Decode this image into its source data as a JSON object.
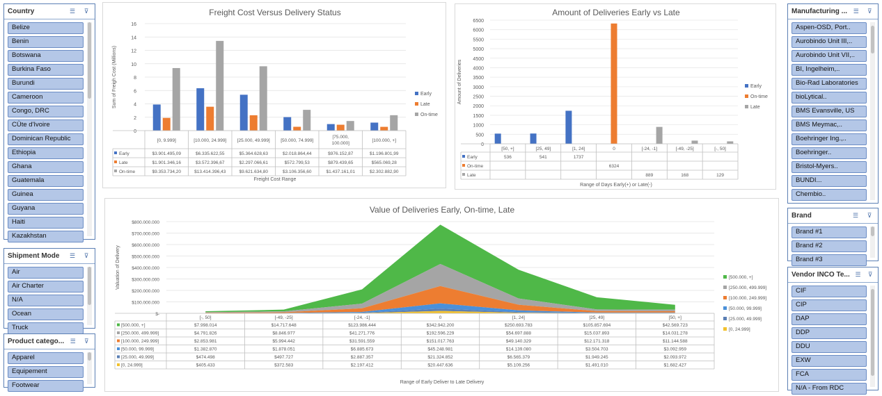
{
  "slicers": {
    "country": {
      "title": "Country",
      "items": [
        "Belize",
        "Benin",
        "Botswana",
        "Burkina Faso",
        "Burundi",
        "Cameroon",
        "Congo, DRC",
        "CÙte d'Ivoire",
        "Dominican Republic",
        "Ethiopia",
        "Ghana",
        "Guatemala",
        "Guinea",
        "Guyana",
        "Haiti",
        "Kazakhstan"
      ]
    },
    "shipment": {
      "title": "Shipment Mode",
      "items": [
        "Air",
        "Air Charter",
        "N/A",
        "Ocean",
        "Truck"
      ]
    },
    "product": {
      "title": "Product catego...",
      "items": [
        "Apparel",
        "Equipement",
        "Footwear"
      ]
    },
    "manufacturing": {
      "title": "Manufacturing ...",
      "items": [
        "Aspen-OSD, Port..",
        "Aurobindo Unit III,..",
        "Aurobindo Unit VII,..",
        "BI, Ingelheim,..",
        "Bio-Rad Laboratories",
        "bioLytical..",
        "BMS Evansville, US",
        "BMS Meymac,..",
        "Boehringer Ing.,..",
        "Boehringer..",
        "Bristol-Myers..",
        "BUNDI...",
        "Chembio.."
      ]
    },
    "brand": {
      "title": "Brand",
      "items": [
        "Brand #1",
        "Brand #2",
        "Brand #3"
      ]
    },
    "vendor": {
      "title": "Vendor INCO Te...",
      "items": [
        "CIF",
        "CIP",
        "DAP",
        "DDP",
        "DDU",
        "EXW",
        "FCA",
        "N/A - From RDC"
      ]
    }
  },
  "chart_data": [
    {
      "type": "bar",
      "title": "Freight Cost Versus Delivery Status",
      "xlabel": "Freight Cost Range",
      "ylabel": "Sum of Freigh Cost (Millions)",
      "ylim": [
        0,
        16
      ],
      "yticks": [
        0,
        2,
        4,
        6,
        8,
        10,
        12,
        14,
        16
      ],
      "legend_position": "right",
      "categories": [
        "[0, 9.999]",
        "[10.000, 24.999]",
        "[25.000, 49.999]",
        "[50.000, 74.999]",
        "[75.000, 100.000]",
        "[100.000, +]"
      ],
      "series": [
        {
          "name": "Early",
          "color": "#4472c4",
          "values": [
            3.901,
            6.336,
            5.365,
            2.019,
            0.976,
            1.197
          ],
          "labels": [
            "$3.901.495,09",
            "$6.335.622,55",
            "$5.364.628,63",
            "$2.018.864,44",
            "$976.152,87",
            "$1.196.801,99"
          ]
        },
        {
          "name": "Late",
          "color": "#ed7d31",
          "values": [
            1.901,
            3.572,
            2.297,
            0.573,
            0.879,
            0.565
          ],
          "labels": [
            "$1.901.346,16",
            "$3.572.396,67",
            "$2.297.066,61",
            "$572.799,53",
            "$879.439,65",
            "$565.069,28"
          ]
        },
        {
          "name": "On-time",
          "color": "#a5a5a5",
          "values": [
            9.354,
            13.414,
            9.622,
            3.106,
            1.437,
            2.303
          ],
          "labels": [
            "$9.353.734,20",
            "$13.414.396,43",
            "$9.621.634,80",
            "$3.106.356,60",
            "$1.437.161,01",
            "$2.302.882,90"
          ]
        }
      ]
    },
    {
      "type": "bar",
      "title": "Amount of Deliveries Early vs Late",
      "xlabel": "Range of Days Early(+) or Late(-)",
      "ylabel": "Amount of Deliveries",
      "ylim": [
        0,
        6500
      ],
      "yticks": [
        0,
        500,
        1000,
        1500,
        2000,
        2500,
        3000,
        3500,
        4000,
        4500,
        5000,
        5500,
        6000,
        6500
      ],
      "legend_position": "right",
      "categories": [
        "[50, +]",
        "[25, 49]",
        "[1, 24]",
        "0",
        "[-24, -1]",
        "[-49, -25]",
        "[-, 50]"
      ],
      "series": [
        {
          "name": "Early",
          "color": "#4472c4",
          "values": [
            536,
            541,
            1737,
            null,
            null,
            null,
            null
          ]
        },
        {
          "name": "On-time",
          "color": "#ed7d31",
          "values": [
            null,
            null,
            null,
            6324,
            null,
            null,
            null
          ]
        },
        {
          "name": "Late",
          "color": "#a5a5a5",
          "values": [
            null,
            null,
            null,
            null,
            889,
            168,
            129
          ]
        }
      ]
    },
    {
      "type": "area",
      "title": "Value of Deliveries Early, On-time, Late",
      "xlabel": "Range of Early Deliver to Late Delivery",
      "ylabel": "Valuation of Delivery",
      "ylim": [
        0,
        800000000
      ],
      "yticks": [
        "$-",
        "$100.000.000",
        "$200.000.000",
        "$300.000.000",
        "$400.000.000",
        "$500.000.000",
        "$600.000.000",
        "$700.000.000",
        "$800.000.000"
      ],
      "legend_position": "right",
      "categories": [
        "[-, 50]",
        "[-49, -25]",
        "[-24, -1]",
        "0",
        "[1, 24]",
        "[25, 49]",
        "[50, +]"
      ],
      "series": [
        {
          "name": "[500.000, +]",
          "color": "#4fb848",
          "values": [
            7998014,
            14717648,
            123986444,
            342942200,
            250693783,
            105857694,
            42569723
          ],
          "labels": [
            "$7.998.014",
            "$14.717.648",
            "$123.986.444",
            "$342.942.200",
            "$250.693.783",
            "$105.857.694",
            "$42.569.723"
          ]
        },
        {
          "name": "[250.000, 499.999]",
          "color": "#a5a5a5",
          "values": [
            4791826,
            8846977,
            41271776,
            192596229,
            54697888,
            15037893,
            14031278
          ],
          "labels": [
            "$4.791.826",
            "$8.846.977",
            "$41.271.776",
            "$192.596.229",
            "$54.697.888",
            "$15.037.893",
            "$14.031.278"
          ]
        },
        {
          "name": "[100.000, 249.999]",
          "color": "#ed7d31",
          "values": [
            2853981,
            5994442,
            31591559,
            151017763,
            49140329,
            12171318,
            11144588
          ],
          "labels": [
            "$2.853.981",
            "$5.994.442",
            "$31.591.559",
            "$151.017.763",
            "$49.140.329",
            "$12.171.318",
            "$11.144.588"
          ]
        },
        {
          "name": "[50.000, 99.999]",
          "color": "#4a90d9",
          "values": [
            1382870,
            1878051,
            6885673,
            45248981,
            14139080,
            3504703,
            3092959
          ],
          "labels": [
            "$1.382.870",
            "$1.878.051",
            "$6.885.673",
            "$45.248.981",
            "$14.139.080",
            "$3.504.703",
            "$3.092.959"
          ]
        },
        {
          "name": "[25.000, 49.999]",
          "color": "#5b7fb4",
          "values": [
            474498,
            497727,
            2887357,
            21324852,
            6565379,
            1949245,
            2093972
          ],
          "labels": [
            "$474.498",
            "$497.727",
            "$2.887.357",
            "$21.324.852",
            "$6.565.379",
            "$1.949.245",
            "$2.093.972"
          ]
        },
        {
          "name": "[0, 24.999]",
          "color": "#f2c12e",
          "values": [
            405433,
            372583,
            2197412,
            20447636,
            5109256,
            1491010,
            1682427
          ],
          "labels": [
            "$405.433",
            "$372.583",
            "$2.197.412",
            "$20.447.636",
            "$5.109.256",
            "$1.491.010",
            "$1.682.427"
          ]
        }
      ]
    }
  ]
}
